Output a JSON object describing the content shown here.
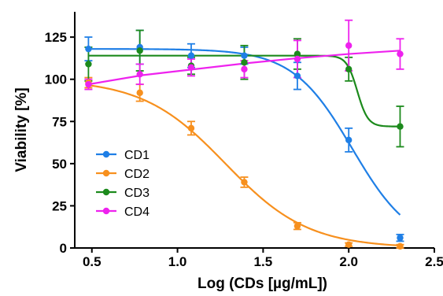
{
  "chart_data": {
    "type": "scatter",
    "title": "",
    "xlabel": "Log (CDs [µg/mL])",
    "ylabel": "Viability [%]",
    "xlim": [
      0.4,
      2.5
    ],
    "ylim": [
      0,
      140
    ],
    "x_ticks": [
      0.5,
      1.0,
      1.5,
      2.0,
      2.5
    ],
    "x_tick_labels": [
      "0.5",
      "1.0",
      "1.5",
      "2.0",
      "2.5"
    ],
    "y_ticks": [
      0,
      25,
      50,
      75,
      100,
      125
    ],
    "y_tick_labels": [
      "0",
      "25",
      "50",
      "75",
      "100",
      "125"
    ],
    "grid": false,
    "legend_position": "center-left",
    "series": [
      {
        "name": "CD1",
        "color": "#1f7fe6",
        "x": [
          0.48,
          0.78,
          1.08,
          1.39,
          1.7,
          2.0,
          2.3
        ],
        "y": [
          118,
          119,
          114,
          114,
          102,
          64,
          6
        ],
        "err": [
          7,
          10,
          7,
          5,
          8,
          7,
          2
        ],
        "fit": {
          "model": "sigmoid",
          "top": 118,
          "bottom": 0,
          "x50": 2.02,
          "slope": -2.5
        }
      },
      {
        "name": "CD2",
        "color": "#f7901e",
        "x": [
          0.48,
          0.78,
          1.08,
          1.39,
          1.7,
          2.0,
          2.3
        ],
        "y": [
          98,
          92,
          71,
          39,
          13,
          2,
          1
        ],
        "err": [
          3,
          5,
          4,
          3,
          2,
          1,
          1
        ],
        "fit": {
          "model": "sigmoid",
          "top": 100,
          "bottom": 0,
          "x50": 1.28,
          "slope": -1.8
        }
      },
      {
        "name": "CD3",
        "color": "#1c8a1c",
        "x": [
          0.48,
          0.78,
          1.08,
          1.39,
          1.7,
          2.0,
          2.3
        ],
        "y": [
          109,
          117,
          108,
          110,
          115,
          106,
          72
        ],
        "err": [
          10,
          12,
          5,
          10,
          9,
          7,
          12
        ],
        "fit": {
          "model": "sigmoid",
          "top": 114,
          "bottom": 72,
          "x50": 2.05,
          "slope": -14
        }
      },
      {
        "name": "CD4",
        "color": "#ee22ee",
        "x": [
          0.48,
          0.78,
          1.08,
          1.39,
          1.7,
          2.0,
          2.3
        ],
        "y": [
          97,
          103,
          107,
          106,
          112,
          120,
          115
        ],
        "err": [
          3,
          6,
          5,
          5,
          11,
          15,
          9
        ],
        "fit": {
          "model": "log-linear",
          "points": [
            [
              0.48,
              97
            ],
            [
              0.8,
              102.5
            ],
            [
              1.1,
              106
            ],
            [
              1.4,
              109.5
            ],
            [
              1.7,
              112.5
            ],
            [
              2.0,
              115
            ],
            [
              2.3,
              117
            ]
          ]
        }
      }
    ]
  }
}
